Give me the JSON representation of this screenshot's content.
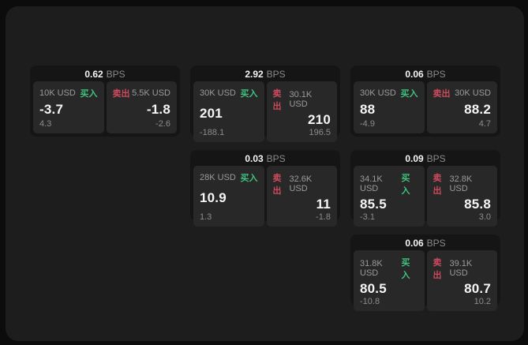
{
  "labels": {
    "bps_unit": "BPS",
    "buy": "买入",
    "sell": "卖出"
  },
  "colors": {
    "page_bg": "#0c0c0c",
    "canvas_bg": "#1d1d1d",
    "card_bg": "#151515",
    "panel_bg": "#282828",
    "buy_green": "#3fc27e",
    "sell_red": "#cc4a5c",
    "text_primary": "#f5f5f5",
    "text_muted": "#9b9b9b"
  },
  "cards": [
    {
      "bps_value": "0.62",
      "buy": {
        "amount": "10K USD",
        "price": "-3.7",
        "delta": "4.3"
      },
      "sell": {
        "amount": "5.5K USD",
        "price": "-1.8",
        "delta": "-2.6"
      }
    },
    {
      "bps_value": "2.92",
      "buy": {
        "amount": "30K USD",
        "price": "201",
        "delta": "-188.1"
      },
      "sell": {
        "amount": "30.1K USD",
        "price": "210",
        "delta": "196.5"
      }
    },
    {
      "bps_value": "0.06",
      "buy": {
        "amount": "30K USD",
        "price": "88",
        "delta": "-4.9"
      },
      "sell": {
        "amount": "30K USD",
        "price": "88.2",
        "delta": "4.7"
      }
    },
    {
      "bps_value": "0.03",
      "buy": {
        "amount": "28K USD",
        "price": "10.9",
        "delta": "1.3"
      },
      "sell": {
        "amount": "32.6K USD",
        "price": "11",
        "delta": "-1.8"
      }
    },
    {
      "bps_value": "0.09",
      "buy": {
        "amount": "34.1K USD",
        "price": "85.5",
        "delta": "-3.1"
      },
      "sell": {
        "amount": "32.8K USD",
        "price": "85.8",
        "delta": "3.0"
      }
    },
    {
      "bps_value": "0.06",
      "buy": {
        "amount": "31.8K USD",
        "price": "80.5",
        "delta": "-10.8"
      },
      "sell": {
        "amount": "39.1K USD",
        "price": "80.7",
        "delta": "10.2"
      }
    }
  ]
}
